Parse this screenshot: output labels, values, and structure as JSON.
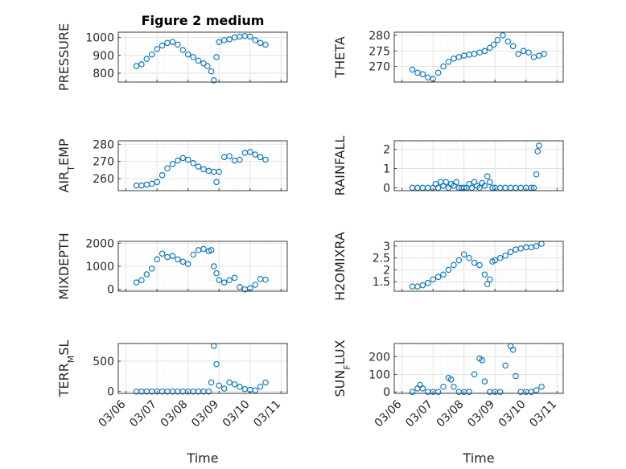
{
  "figure": {
    "title": "Figure 2 medium",
    "xlabel": "Time",
    "x_tick_labels": [
      "03/06",
      "03/07",
      "03/08",
      "03/09",
      "03/10",
      "03/11"
    ],
    "x_ticks_days": [
      6,
      7,
      8,
      9,
      10,
      11
    ]
  },
  "chart_data": [
    {
      "type": "scatter",
      "ylabel": "PRESSURE",
      "ylabel_sub": null,
      "xlim": [
        "03/06",
        "03/11"
      ],
      "ylim": [
        750,
        1030
      ],
      "yticks": [
        800,
        900,
        1000
      ],
      "ytick_labels": [
        "800",
        "900",
        "1000"
      ],
      "title": "Figure 2 medium",
      "xlabel": "",
      "grid": true,
      "x": [
        "03/06 08:00",
        "03/06 12:00",
        "03/06 16:00",
        "03/06 20:00",
        "03/07 00:00",
        "03/07 04:00",
        "03/07 08:00",
        "03/07 12:00",
        "03/07 16:00",
        "03/07 20:00",
        "03/08 00:00",
        "03/08 04:00",
        "03/08 08:00",
        "03/08 12:00",
        "03/08 15:00",
        "03/08 18:00",
        "03/08 20:00",
        "03/08 22:00",
        "03/09 00:00",
        "03/09 04:00",
        "03/09 08:00",
        "03/09 12:00",
        "03/09 16:00",
        "03/09 20:00",
        "03/10 00:00",
        "03/10 04:00",
        "03/10 08:00",
        "03/10 12:00"
      ],
      "y": [
        840,
        850,
        880,
        905,
        935,
        955,
        970,
        975,
        960,
        930,
        905,
        890,
        870,
        855,
        840,
        810,
        760,
        890,
        975,
        985,
        990,
        1000,
        1005,
        1008,
        1005,
        985,
        970,
        960
      ]
    },
    {
      "type": "scatter",
      "ylabel": "THETA",
      "ylabel_sub": null,
      "xlim": [
        "03/06",
        "03/11"
      ],
      "ylim": [
        265,
        281
      ],
      "yticks": [
        270,
        275,
        280
      ],
      "ytick_labels": [
        "270",
        "275",
        "280"
      ],
      "title": "",
      "xlabel": "",
      "grid": true,
      "x": [
        "03/06 08:00",
        "03/06 12:00",
        "03/06 16:00",
        "03/06 20:00",
        "03/07 00:00",
        "03/07 04:00",
        "03/07 08:00",
        "03/07 12:00",
        "03/07 16:00",
        "03/07 20:00",
        "03/08 00:00",
        "03/08 04:00",
        "03/08 08:00",
        "03/08 12:00",
        "03/08 16:00",
        "03/08 20:00",
        "03/08 23:00",
        "03/09 02:00",
        "03/09 06:00",
        "03/09 10:00",
        "03/09 14:00",
        "03/09 18:00",
        "03/09 22:00",
        "03/10 02:00",
        "03/10 06:00",
        "03/10 10:00",
        "03/10 14:00"
      ],
      "y": [
        269,
        268,
        267.5,
        266.5,
        266,
        268,
        270,
        271.5,
        272.5,
        273,
        273.5,
        273.8,
        274,
        274.5,
        275,
        276,
        277,
        278.5,
        280,
        278,
        276.5,
        274,
        275,
        274.5,
        273,
        273.5,
        274
      ]
    },
    {
      "type": "scatter",
      "ylabel": "AIR",
      "ylabel_sub": "T",
      "ylabel_rest": "EMP",
      "xlim": [
        "03/06",
        "03/11"
      ],
      "ylim": [
        253,
        282
      ],
      "yticks": [
        260,
        270,
        280
      ],
      "ytick_labels": [
        "260",
        "270",
        "280"
      ],
      "title": "",
      "xlabel": "",
      "grid": true,
      "x": [
        "03/06 08:00",
        "03/06 12:00",
        "03/06 16:00",
        "03/06 20:00",
        "03/07 00:00",
        "03/07 04:00",
        "03/07 08:00",
        "03/07 12:00",
        "03/07 16:00",
        "03/07 20:00",
        "03/08 00:00",
        "03/08 04:00",
        "03/08 08:00",
        "03/08 12:00",
        "03/08 16:00",
        "03/08 20:00",
        "03/08 22:00",
        "03/09 00:00",
        "03/09 04:00",
        "03/09 08:00",
        "03/09 12:00",
        "03/09 16:00",
        "03/09 20:00",
        "03/10 00:00",
        "03/10 04:00",
        "03/10 08:00",
        "03/10 12:00"
      ],
      "y": [
        256,
        256,
        256.5,
        257,
        258,
        262,
        266,
        268.5,
        270.5,
        272,
        271,
        269,
        267,
        265.5,
        264.5,
        264,
        258,
        264,
        272.5,
        273,
        270.5,
        271,
        275,
        275.5,
        274,
        272.5,
        271
      ]
    },
    {
      "type": "scatter",
      "ylabel": "RAINFALL",
      "ylabel_sub": null,
      "xlim": [
        "03/06",
        "03/11"
      ],
      "ylim": [
        -0.15,
        2.45
      ],
      "yticks": [
        0,
        1,
        2
      ],
      "ytick_labels": [
        "0",
        "1",
        "2"
      ],
      "title": "",
      "xlabel": "",
      "grid": true,
      "x": [
        "03/06 08:00",
        "03/06 12:00",
        "03/06 16:00",
        "03/06 20:00",
        "03/07 00:00",
        "03/07 02:00",
        "03/07 04:00",
        "03/07 06:00",
        "03/07 08:00",
        "03/07 10:00",
        "03/07 12:00",
        "03/07 14:00",
        "03/07 16:00",
        "03/07 18:00",
        "03/07 20:00",
        "03/07 22:00",
        "03/08 00:00",
        "03/08 02:00",
        "03/08 04:00",
        "03/08 06:00",
        "03/08 08:00",
        "03/08 10:00",
        "03/08 12:00",
        "03/08 14:00",
        "03/08 16:00",
        "03/08 18:00",
        "03/08 20:00",
        "03/08 22:00",
        "03/09 00:00",
        "03/09 04:00",
        "03/09 08:00",
        "03/09 12:00",
        "03/09 16:00",
        "03/09 20:00",
        "03/10 00:00",
        "03/10 04:00",
        "03/10 06:00",
        "03/10 08:00",
        "03/10 09:00",
        "03/10 10:00"
      ],
      "y": [
        0,
        0,
        0,
        0,
        0,
        0.2,
        0,
        0.3,
        0.1,
        0.3,
        0,
        0.2,
        0.1,
        0.3,
        0,
        0,
        0,
        0,
        0.2,
        0,
        0.3,
        0.1,
        0,
        0.25,
        0.1,
        0.6,
        0.3,
        0,
        0,
        0,
        0,
        0,
        0,
        0,
        0,
        0,
        0,
        0.7,
        1.9,
        2.2
      ]
    },
    {
      "type": "scatter",
      "ylabel": "MIXDEPTH",
      "ylabel_sub": null,
      "xlim": [
        "03/06",
        "03/11"
      ],
      "ylim": [
        -80,
        2080
      ],
      "yticks": [
        0,
        1000,
        2000
      ],
      "ytick_labels": [
        "0",
        "1000",
        "2000"
      ],
      "title": "",
      "xlabel": "",
      "grid": true,
      "x": [
        "03/06 08:00",
        "03/06 12:00",
        "03/06 16:00",
        "03/06 20:00",
        "03/07 00:00",
        "03/07 04:00",
        "03/07 08:00",
        "03/07 12:00",
        "03/07 16:00",
        "03/07 20:00",
        "03/08 00:00",
        "03/08 04:00",
        "03/08 08:00",
        "03/08 12:00",
        "03/08 16:00",
        "03/08 18:00",
        "03/08 20:00",
        "03/08 22:00",
        "03/09 00:00",
        "03/09 04:00",
        "03/09 08:00",
        "03/09 12:00",
        "03/09 16:00",
        "03/09 20:00",
        "03/10 00:00",
        "03/10 04:00",
        "03/10 08:00",
        "03/10 12:00"
      ],
      "y": [
        300,
        400,
        650,
        900,
        1300,
        1550,
        1400,
        1450,
        1300,
        1200,
        1100,
        1500,
        1700,
        1750,
        1650,
        1700,
        1000,
        700,
        400,
        300,
        400,
        500,
        100,
        0,
        50,
        200,
        450,
        420
      ]
    },
    {
      "type": "scatter",
      "ylabel": "H2OMIXRA",
      "ylabel_sub": null,
      "xlim": [
        "03/06",
        "03/11"
      ],
      "ylim": [
        1.1,
        3.2
      ],
      "yticks": [
        1.5,
        2,
        2.5,
        3
      ],
      "ytick_labels": [
        "1.5",
        "2",
        "2.5",
        "3"
      ],
      "title": "",
      "xlabel": "",
      "grid": true,
      "x": [
        "03/06 08:00",
        "03/06 12:00",
        "03/06 16:00",
        "03/06 20:00",
        "03/07 00:00",
        "03/07 04:00",
        "03/07 08:00",
        "03/07 12:00",
        "03/07 16:00",
        "03/07 20:00",
        "03/08 00:00",
        "03/08 04:00",
        "03/08 08:00",
        "03/08 12:00",
        "03/08 16:00",
        "03/08 18:00",
        "03/08 20:00",
        "03/08 22:00",
        "03/09 00:00",
        "03/09 04:00",
        "03/09 08:00",
        "03/09 12:00",
        "03/09 16:00",
        "03/09 20:00",
        "03/10 00:00",
        "03/10 04:00",
        "03/10 08:00",
        "03/10 12:00"
      ],
      "y": [
        1.3,
        1.3,
        1.35,
        1.45,
        1.6,
        1.7,
        1.8,
        2.0,
        2.2,
        2.4,
        2.65,
        2.5,
        2.3,
        2.2,
        1.8,
        1.4,
        1.6,
        2.35,
        2.4,
        2.5,
        2.6,
        2.75,
        2.85,
        2.9,
        2.95,
        2.95,
        3.0,
        3.1
      ]
    },
    {
      "type": "scatter",
      "ylabel": "TERR",
      "ylabel_sub": "M",
      "ylabel_rest": "SL",
      "xlim": [
        "03/06",
        "03/11"
      ],
      "ylim": [
        -30,
        790
      ],
      "yticks": [
        0,
        500
      ],
      "ytick_labels": [
        "0",
        "500"
      ],
      "title": "",
      "xlabel": "Time",
      "grid": true,
      "x": [
        "03/06 08:00",
        "03/06 12:00",
        "03/06 16:00",
        "03/06 20:00",
        "03/07 00:00",
        "03/07 04:00",
        "03/07 08:00",
        "03/07 12:00",
        "03/07 16:00",
        "03/07 20:00",
        "03/08 00:00",
        "03/08 04:00",
        "03/08 08:00",
        "03/08 12:00",
        "03/08 16:00",
        "03/08 18:00",
        "03/08 20:00",
        "03/08 22:00",
        "03/09 00:00",
        "03/09 04:00",
        "03/09 08:00",
        "03/09 12:00",
        "03/09 16:00",
        "03/09 20:00",
        "03/10 00:00",
        "03/10 04:00",
        "03/10 08:00",
        "03/10 12:00"
      ],
      "y": [
        0,
        0,
        0,
        0,
        0,
        0,
        0,
        0,
        0,
        0,
        0,
        0,
        0,
        0,
        0,
        150,
        750,
        450,
        100,
        50,
        150,
        120,
        80,
        40,
        30,
        20,
        80,
        150
      ]
    },
    {
      "type": "scatter",
      "ylabel": "SUN",
      "ylabel_sub": "F",
      "ylabel_rest": "LUX",
      "xlim": [
        "03/06",
        "03/11"
      ],
      "ylim": [
        -8,
        275
      ],
      "yticks": [
        0,
        100,
        200
      ],
      "ytick_labels": [
        "0",
        "100",
        "200"
      ],
      "title": "",
      "xlabel": "Time",
      "grid": true,
      "x": [
        "03/06 08:00",
        "03/06 12:00",
        "03/06 14:00",
        "03/06 16:00",
        "03/06 20:00",
        "03/07 00:00",
        "03/07 04:00",
        "03/07 08:00",
        "03/07 12:00",
        "03/07 14:00",
        "03/07 16:00",
        "03/07 20:00",
        "03/08 00:00",
        "03/08 04:00",
        "03/08 08:00",
        "03/08 12:00",
        "03/08 14:00",
        "03/08 16:00",
        "03/08 20:00",
        "03/09 00:00",
        "03/09 04:00",
        "03/09 08:00",
        "03/09 12:00",
        "03/09 14:00",
        "03/09 16:00",
        "03/09 20:00",
        "03/10 00:00",
        "03/10 04:00",
        "03/10 08:00",
        "03/10 12:00"
      ],
      "y": [
        0,
        20,
        40,
        20,
        0,
        0,
        0,
        30,
        80,
        70,
        30,
        0,
        0,
        0,
        100,
        190,
        180,
        60,
        0,
        0,
        0,
        150,
        260,
        240,
        90,
        0,
        0,
        0,
        10,
        30
      ]
    }
  ]
}
